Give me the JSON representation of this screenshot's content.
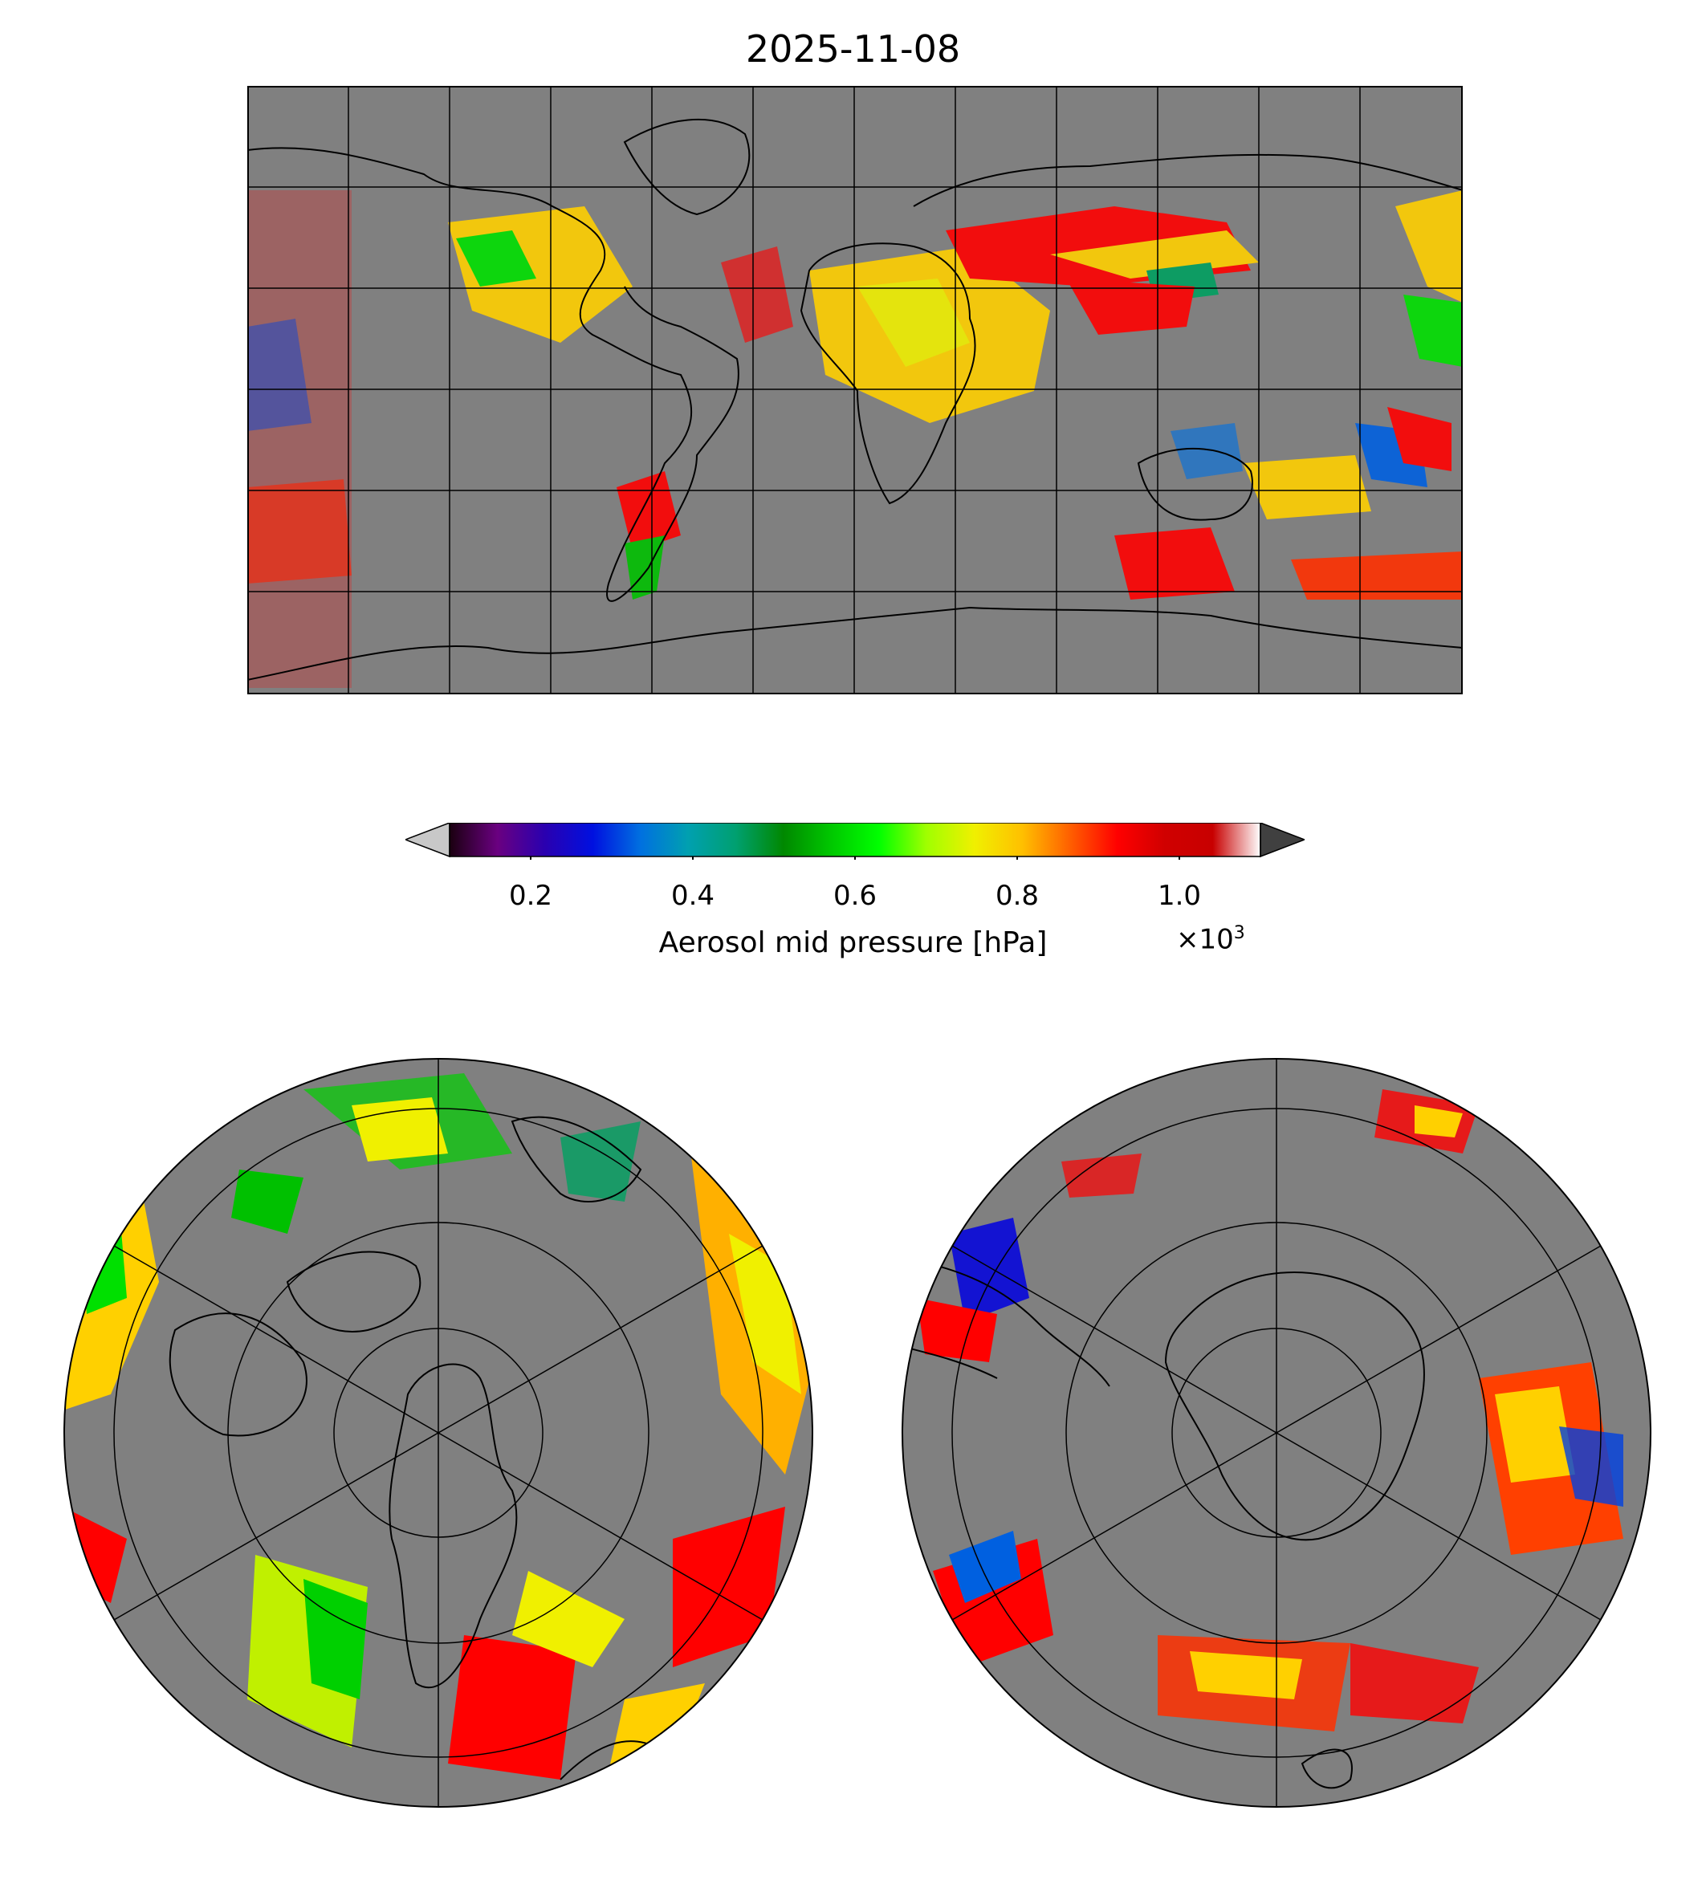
{
  "figure": {
    "title": "2025-11-08"
  },
  "colorbar": {
    "label": "Aerosol mid pressure [hPa]",
    "multiplier_base": "×10",
    "multiplier_exp": "3",
    "ticks": [
      "0.2",
      "0.4",
      "0.6",
      "0.8",
      "1.0"
    ],
    "tick_values": [
      0.2,
      0.4,
      0.6,
      0.8,
      1.0
    ],
    "range": [
      0.1,
      1.1
    ],
    "extend": "both",
    "colors": [
      "#1a0010",
      "#6a0080",
      "#2a00b0",
      "#0010e0",
      "#0070e0",
      "#00a0b0",
      "#00a070",
      "#008800",
      "#00c800",
      "#00ff00",
      "#a0ff00",
      "#f0f000",
      "#ffc000",
      "#ff6000",
      "#ff0000",
      "#d00000",
      "#c80000",
      "#ffffff"
    ],
    "under_color": "#c8c8c8",
    "over_color": "#404040"
  },
  "panels": {
    "global": {
      "projection": "plate carree",
      "background": "#808080"
    },
    "north_polar": {
      "projection": "north polar stereographic",
      "background": "#808080"
    },
    "south_polar": {
      "projection": "south polar stereographic",
      "background": "#808080"
    }
  }
}
